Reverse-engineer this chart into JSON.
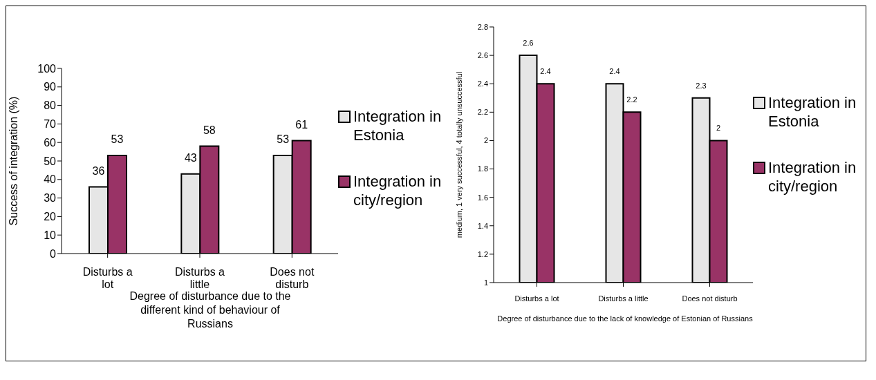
{
  "chart_data": [
    {
      "type": "bar",
      "categories": [
        "Disturbs a lot",
        "Disturbs a little",
        "Does not disturb"
      ],
      "xlabel": "Degree of disturbance due to the different kind of behaviour of Russians",
      "ylabel": "Success of integration (%)",
      "ylim": [
        0,
        100
      ],
      "yticks": [
        0,
        10,
        20,
        30,
        40,
        50,
        60,
        70,
        80,
        90,
        100
      ],
      "grid": false,
      "legend": "right",
      "data_labels": true,
      "series": [
        {
          "name": "Integration in Estonia",
          "color": "#e6e6e6",
          "values": [
            36,
            43,
            53
          ]
        },
        {
          "name": "Integration in city/region",
          "color": "#993366",
          "values": [
            53,
            58,
            61
          ]
        }
      ]
    },
    {
      "type": "bar",
      "categories": [
        "Disturbs a lot",
        "Disturbs a little",
        "Does not disturb"
      ],
      "xlabel": "Degree of disturbance due to the lack of knowledge of Estonian of Russians",
      "ylabel": "medium, 1 very successful, 4 totally unsuccessful",
      "ylim": [
        1,
        2.8
      ],
      "yticks": [
        1,
        1.2,
        1.4,
        1.6,
        1.8,
        2,
        2.2,
        2.4,
        2.6,
        2.8
      ],
      "grid": false,
      "legend": "right",
      "data_labels": true,
      "series": [
        {
          "name": "Integration in Estonia",
          "color": "#e6e6e6",
          "values": [
            2.6,
            2.4,
            2.3
          ]
        },
        {
          "name": "Integration in city/region",
          "color": "#993366",
          "values": [
            2.4,
            2.2,
            2
          ]
        }
      ]
    }
  ]
}
